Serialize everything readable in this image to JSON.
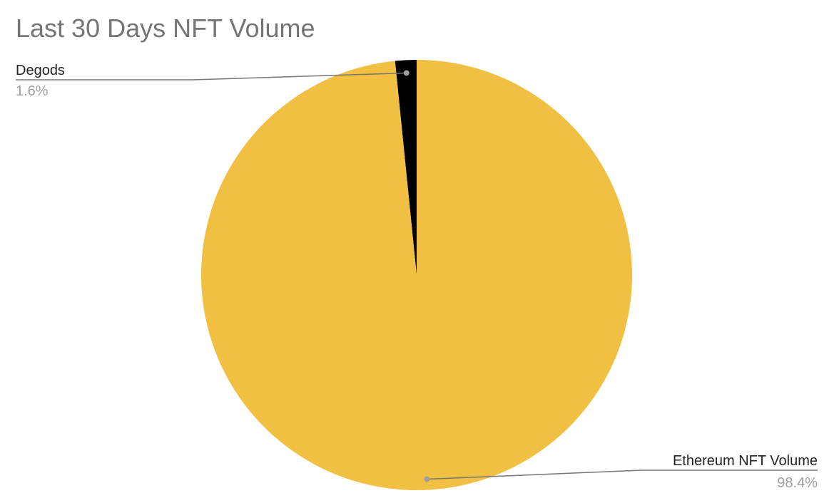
{
  "chart_data": {
    "type": "pie",
    "title": "Last 30 Days NFT Volume",
    "start_angle_deg": 0,
    "direction": "counterclockwise",
    "slices": [
      {
        "label": "Degods",
        "value": 1.6,
        "percent_label": "1.6%",
        "color": "#000000"
      },
      {
        "label": "Ethereum NFT Volume",
        "value": 98.4,
        "percent_label": "98.4%",
        "color": "#F1BF42"
      }
    ],
    "legend": "callout-labels",
    "leader_line_color": "#757575"
  }
}
